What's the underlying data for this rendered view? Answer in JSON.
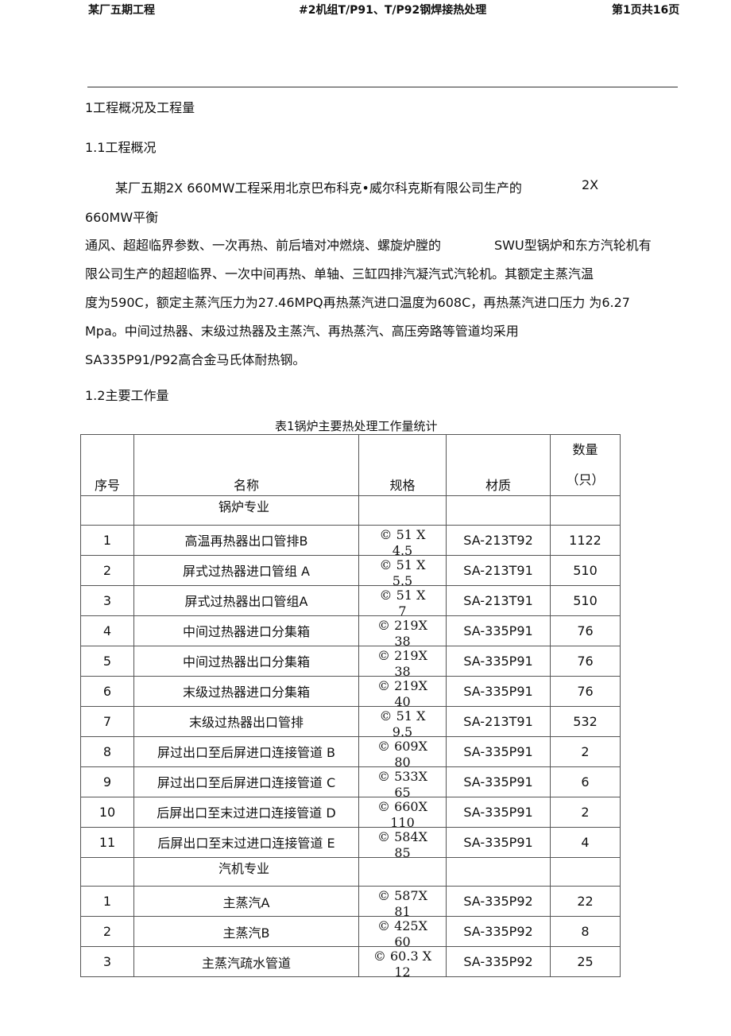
{
  "header": {
    "left": "某厂五期工程",
    "center": "#2机组T/P91、T/P92钢焊接热处理",
    "right": "第1页共16页"
  },
  "section_1": "1工程概况及工程量",
  "section_1_1": "1.1工程概况",
  "paragraph": {
    "lines": [
      [
        "某厂五期2X 660MW工程采用北京巴布科克•威尔科克斯有限公司生产的",
        "2X"
      ],
      [
        "660MW平衡"
      ],
      [
        "通风、超超临界参数、一次再热、前后墙对冲燃烧、螺旋炉膛的",
        "SWU型锅炉和东方汽轮机有"
      ],
      [
        "限公司生产的超超临界、一次中间再热、单轴、三缸四排汽凝汽式汽轮机。其额定主蒸汽温"
      ],
      [
        "度为590C，额定主蒸汽压力为27.46MPQ再热蒸汽进口温度为608C，再热蒸汽进口压力 为6.27"
      ],
      [
        "Mpa。中间过热器、末级过热器及主蒸汽、再热蒸汽、高压旁路等管道均采用"
      ],
      [
        "SA335P91/P92高合金马氏体耐热钢。"
      ]
    ]
  },
  "section_1_2": "1.2主要工作量",
  "table": {
    "caption": "表1锅炉主要热处理工作量统计",
    "header": {
      "cells": [
        "序号",
        "名称",
        "规格",
        "材质"
      ],
      "quantity": [
        "数量",
        "（只）"
      ]
    },
    "rows": [
      {
        "section": "锅炉专业"
      },
      {
        "no": "1",
        "name": "高温再热器出口管排B",
        "spec": [
          "© 51 X",
          "4.5"
        ],
        "material": "SA-213T92",
        "qty": "1122"
      },
      {
        "no": "2",
        "name": "屏式过热器进口管组 A",
        "spec": [
          "© 51 X",
          "5.5"
        ],
        "material": "SA-213T91",
        "qty": "510"
      },
      {
        "no": "3",
        "name": "屏式过热器出口管组A",
        "spec": [
          "© 51 X",
          "7"
        ],
        "material": "SA-213T91",
        "qty": "510"
      },
      {
        "no": "4",
        "name": "中间过热器进口分集箱",
        "spec": [
          "© 219X",
          "38"
        ],
        "material": "SA-335P91",
        "qty": "76"
      },
      {
        "no": "5",
        "name": "中间过热器出口分集箱",
        "spec": [
          "© 219X",
          "38"
        ],
        "material": "SA-335P91",
        "qty": "76"
      },
      {
        "no": "6",
        "name": "末级过热器进口分集箱",
        "spec": [
          "© 219X",
          "40"
        ],
        "material": "SA-335P91",
        "qty": "76"
      },
      {
        "no": "7",
        "name": "末级过热器出口管排",
        "spec": [
          "© 51 X",
          "9.5"
        ],
        "material": "SA-213T91",
        "qty": "532"
      },
      {
        "no": "8",
        "name": "屏过出口至后屏进口连接管道 B",
        "spec": [
          "© 609X",
          "80"
        ],
        "material": "SA-335P91",
        "qty": "2"
      },
      {
        "no": "9",
        "name": "屏过出口至后屏进口连接管道 C",
        "spec": [
          "© 533X",
          "65"
        ],
        "material": "SA-335P91",
        "qty": "6"
      },
      {
        "no": "10",
        "name": "后屏出口至末过进口连接管道 D",
        "spec": [
          "© 660X",
          "110"
        ],
        "material": "SA-335P91",
        "qty": "2"
      },
      {
        "no": "11",
        "name": "后屏出口至末过进口连接管道 E",
        "spec": [
          "© 584X",
          "85"
        ],
        "material": "SA-335P91",
        "qty": "4"
      },
      {
        "section": "汽机专业"
      },
      {
        "no": "1",
        "name": "主蒸汽A",
        "spec": [
          "© 587X",
          "81"
        ],
        "material": "SA-335P92",
        "qty": "22"
      },
      {
        "no": "2",
        "name": "主蒸汽B",
        "spec": [
          "© 425X",
          "60"
        ],
        "material": "SA-335P92",
        "qty": "8"
      },
      {
        "no": "3",
        "name": "主蒸汽疏水管道",
        "spec": [
          "© 60.3 X",
          "12"
        ],
        "material": "SA-335P92",
        "qty": "25"
      }
    ]
  }
}
